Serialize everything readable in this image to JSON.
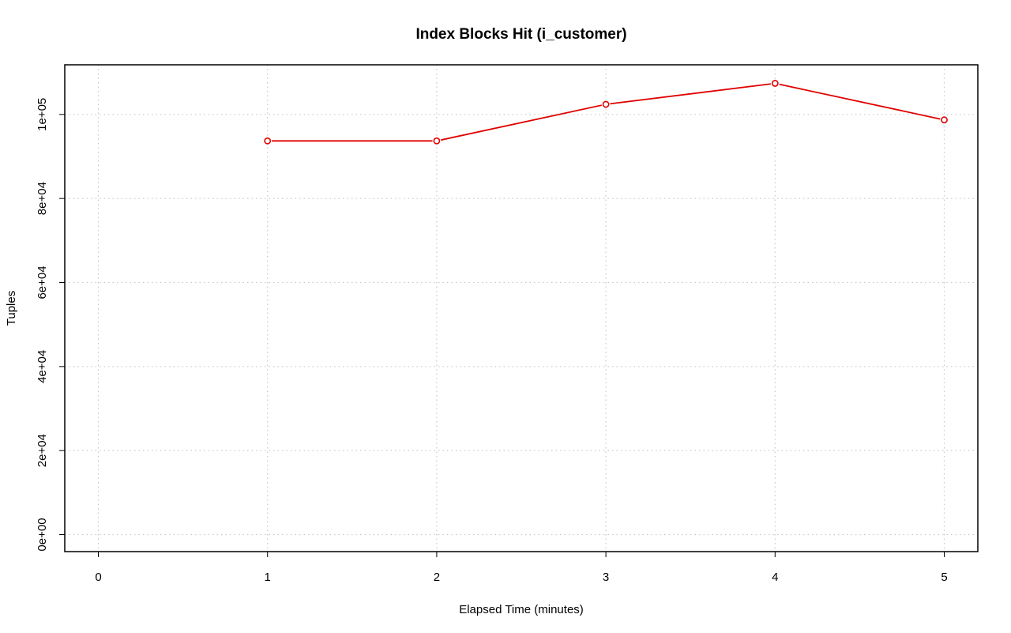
{
  "chart_data": {
    "type": "line",
    "title": "Index Blocks Hit (i_customer)",
    "xlabel": "Elapsed Time (minutes)",
    "ylabel": "Tuples",
    "xlim": [
      0,
      5
    ],
    "ylim": [
      0,
      105000
    ],
    "x_ticks": [
      0,
      1,
      2,
      3,
      4,
      5
    ],
    "x_tick_labels": [
      "0",
      "1",
      "2",
      "3",
      "4",
      "5"
    ],
    "y_ticks": [
      0,
      20000,
      40000,
      60000,
      80000,
      100000
    ],
    "y_tick_labels": [
      "0e+00",
      "2e+04",
      "4e+04",
      "6e+04",
      "8e+04",
      "1e+05"
    ],
    "grid": true,
    "legend": "none",
    "series": [
      {
        "color": "#e00000",
        "marker": "open-circle",
        "x": [
          1,
          2,
          3,
          4,
          5
        ],
        "y": [
          93700,
          93700,
          102400,
          107400,
          98700
        ]
      }
    ]
  }
}
